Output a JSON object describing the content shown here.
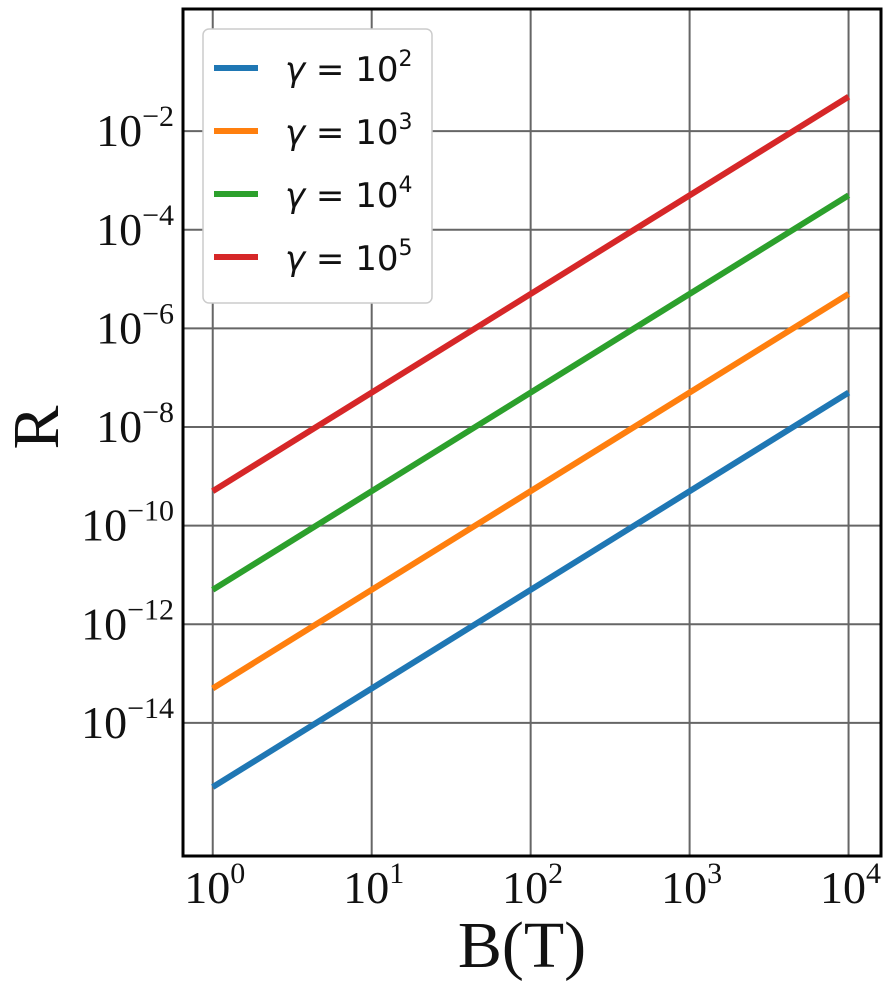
{
  "chart_data": {
    "type": "line",
    "xlabel": "B(T)",
    "ylabel": "R",
    "xscale": "log",
    "yscale": "log",
    "xlim": [
      0.65,
      16000
    ],
    "ylim": [
      2e-17,
      3
    ],
    "grid": true,
    "legend_placement": "top-left",
    "x_ticks": [
      {
        "value": 1,
        "base": "10",
        "exp": "0"
      },
      {
        "value": 10,
        "base": "10",
        "exp": "1"
      },
      {
        "value": 100,
        "base": "10",
        "exp": "2"
      },
      {
        "value": 1000,
        "base": "10",
        "exp": "3"
      },
      {
        "value": 10000,
        "base": "10",
        "exp": "4"
      }
    ],
    "y_ticks": [
      {
        "value": 1e-14,
        "base": "10",
        "exp": "−14"
      },
      {
        "value": 1e-12,
        "base": "10",
        "exp": "−12"
      },
      {
        "value": 1e-10,
        "base": "10",
        "exp": "−10"
      },
      {
        "value": 1e-08,
        "base": "10",
        "exp": "−8"
      },
      {
        "value": 1e-06,
        "base": "10",
        "exp": "−6"
      },
      {
        "value": 0.0001,
        "base": "10",
        "exp": "−4"
      },
      {
        "value": 0.01,
        "base": "10",
        "exp": "−2"
      }
    ],
    "series": [
      {
        "label_var": "γ",
        "label_eq": " = 10",
        "label_exp": "2",
        "color": "#1f77b4",
        "x": [
          1,
          10000
        ],
        "y": [
          5e-16,
          5e-08
        ]
      },
      {
        "label_var": "γ",
        "label_eq": " = 10",
        "label_exp": "3",
        "color": "#ff7f0e",
        "x": [
          1,
          10000
        ],
        "y": [
          5e-14,
          5e-06
        ]
      },
      {
        "label_var": "γ",
        "label_eq": " = 10",
        "label_exp": "4",
        "color": "#2ca02c",
        "x": [
          1,
          10000
        ],
        "y": [
          5e-12,
          0.0005
        ]
      },
      {
        "label_var": "γ",
        "label_eq": " = 10",
        "label_exp": "5",
        "color": "#d62728",
        "x": [
          1,
          10000
        ],
        "y": [
          5e-10,
          0.05
        ]
      }
    ]
  }
}
